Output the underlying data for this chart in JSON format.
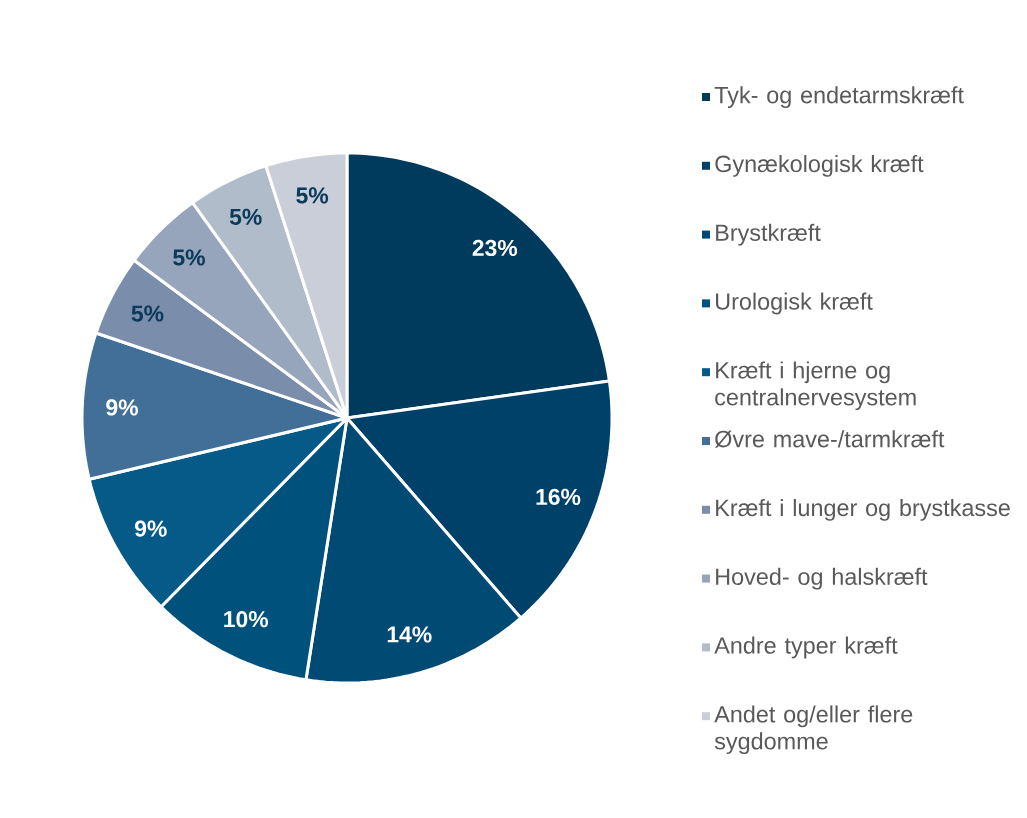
{
  "chart_data": {
    "type": "pie",
    "categories": [
      "Tyk- og endetarmskræft",
      "Gynækologisk kræft",
      "Brystkræft",
      "Urologisk kræft",
      "Kræft i hjerne og centralnervesystem",
      "Øvre mave-/tarmkræft",
      "Kræft i lunger og brystkasse",
      "Hoved- og halskræft",
      "Andre typer kræft",
      "Andet og/eller flere sygdomme"
    ],
    "values": [
      23,
      16,
      14,
      10,
      9,
      9,
      5,
      5,
      5,
      5
    ],
    "colors": [
      "#003a5d",
      "#00416a",
      "#004a73",
      "#00527c",
      "#055a88",
      "#416f97",
      "#7a8dab",
      "#96a5bb",
      "#b1bccb",
      "#c9ced9"
    ],
    "value_labels": [
      "23%",
      "16%",
      "14%",
      "10%",
      "9%",
      "9%",
      "5%",
      "5%",
      "5%",
      "5%"
    ],
    "legend": "right"
  }
}
